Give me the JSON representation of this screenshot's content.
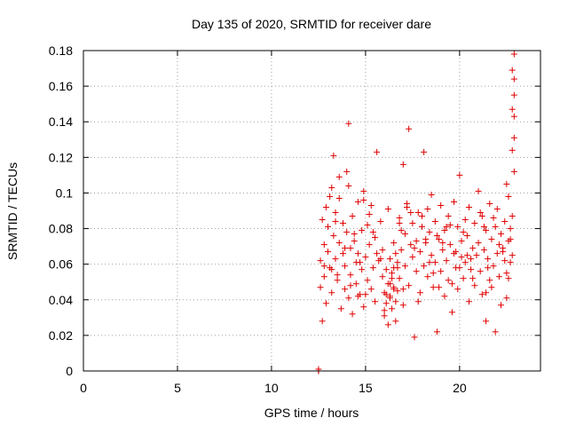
{
  "chart_data": {
    "type": "scatter",
    "title": "Day 135 of 2020, SRMTID for receiver dare",
    "xlabel": "GPS time / hours",
    "ylabel": "SRMTID / TECUs",
    "xlim": [
      0,
      24.3
    ],
    "ylim": [
      0,
      0.18
    ],
    "xticks": [
      0,
      5,
      10,
      15,
      20
    ],
    "yticks": [
      0,
      0.02,
      0.04,
      0.06,
      0.08,
      0.1,
      0.12,
      0.14,
      0.16,
      0.18
    ],
    "xtick_labels": [
      "0",
      "5",
      "10",
      "15",
      "20"
    ],
    "ytick_labels": [
      "0",
      "0.02",
      "0.04",
      "0.06",
      "0.08",
      "0.1",
      "0.12",
      "0.14",
      "0.16",
      "0.18"
    ],
    "grid": true,
    "marker": "+",
    "colors": {
      "points": "#e00000",
      "grid": "#a0a0a0",
      "frame": "#000000"
    },
    "series": [
      {
        "name": "SRMTID",
        "x": [
          12.5,
          12.5,
          12.5,
          12.6,
          12.6,
          12.7,
          12.7,
          12.8,
          12.8,
          12.9,
          12.9,
          13.0,
          13.0,
          13.1,
          13.2,
          13.2,
          13.3,
          13.3,
          13.4,
          13.4,
          13.5,
          13.6,
          13.6,
          13.7,
          13.8,
          13.8,
          13.9,
          13.9,
          14.0,
          14.0,
          14.1,
          14.1,
          14.2,
          14.2,
          14.3,
          14.3,
          14.4,
          14.5,
          14.5,
          14.6,
          14.6,
          14.7,
          14.8,
          14.8,
          14.9,
          14.9,
          15.0,
          15.1,
          15.1,
          15.2,
          15.3,
          15.3,
          15.4,
          15.5,
          15.5,
          15.6,
          15.7,
          15.8,
          15.9,
          15.9,
          16.0,
          16.0,
          16.1,
          16.1,
          16.2,
          16.2,
          16.3,
          16.3,
          16.4,
          16.4,
          16.5,
          16.5,
          16.6,
          16.6,
          16.7,
          16.7,
          16.8,
          16.8,
          16.9,
          17.0,
          17.0,
          17.1,
          17.1,
          17.2,
          17.3,
          17.3,
          17.4,
          17.5,
          17.5,
          17.6,
          17.7,
          17.7,
          17.8,
          17.9,
          17.9,
          18.0,
          18.1,
          18.1,
          18.2,
          18.3,
          18.3,
          18.4,
          18.5,
          18.5,
          18.6,
          18.7,
          18.7,
          18.8,
          18.9,
          19.0,
          19.0,
          19.1,
          19.2,
          19.2,
          19.3,
          19.4,
          19.4,
          19.5,
          19.6,
          19.7,
          19.7,
          19.8,
          19.9,
          19.9,
          20.0,
          20.1,
          20.1,
          20.2,
          20.3,
          20.3,
          20.4,
          20.5,
          20.5,
          20.6,
          20.7,
          20.8,
          20.8,
          20.9,
          21.0,
          21.0,
          21.1,
          21.2,
          21.2,
          21.3,
          21.4,
          21.4,
          21.5,
          21.6,
          21.6,
          21.7,
          21.8,
          21.8,
          21.9,
          22.0,
          22.0,
          22.1,
          22.2,
          22.2,
          22.3,
          22.4,
          22.4,
          22.5,
          22.5,
          22.6,
          22.6,
          22.7,
          22.7,
          22.8,
          22.8,
          22.8,
          22.9,
          22.9,
          22.9,
          22.9,
          22.9,
          22.9,
          22.8,
          22.8,
          22.7,
          22.6,
          13.1,
          13.4,
          13.9,
          14.1,
          14.4,
          14.7,
          15.2,
          15.6,
          16.2,
          16.5,
          16.9,
          17.2,
          17.6,
          18.0,
          18.4,
          18.8,
          19.1,
          19.5,
          19.8,
          20.2,
          20.6,
          21.1,
          21.5,
          21.9,
          22.3,
          13.6,
          14.9,
          15.4,
          16.8,
          17.4,
          18.2,
          19.3,
          20.4,
          21.3,
          22.1,
          13.2,
          14.2,
          15.0,
          16.0,
          17.0,
          18.6,
          19.6,
          20.7,
          21.7,
          12.8,
          13.5,
          14.6,
          15.8,
          16.3,
          17.8,
          18.9,
          20.0,
          21.4,
          22.5,
          16.6,
          16.4,
          16.7,
          16.1,
          16.3,
          16.5
        ],
        "y": [
          0.0,
          0.001,
          0.0,
          0.062,
          0.047,
          0.085,
          0.028,
          0.071,
          0.053,
          0.092,
          0.038,
          0.067,
          0.081,
          0.058,
          0.103,
          0.044,
          0.076,
          0.121,
          0.063,
          0.089,
          0.051,
          0.072,
          0.097,
          0.035,
          0.066,
          0.083,
          0.046,
          0.059,
          0.078,
          0.112,
          0.041,
          0.139,
          0.069,
          0.054,
          0.087,
          0.032,
          0.073,
          0.061,
          0.049,
          0.095,
          0.066,
          0.043,
          0.079,
          0.057,
          0.101,
          0.036,
          0.064,
          0.082,
          0.051,
          0.071,
          0.046,
          0.093,
          0.058,
          0.075,
          0.039,
          0.123,
          0.062,
          0.084,
          0.053,
          0.068,
          0.044,
          0.031,
          0.057,
          0.038,
          0.049,
          0.026,
          0.063,
          0.042,
          0.035,
          0.055,
          0.047,
          0.072,
          0.039,
          0.028,
          0.061,
          0.045,
          0.086,
          0.052,
          0.068,
          0.037,
          0.116,
          0.077,
          0.059,
          0.092,
          0.048,
          0.136,
          0.071,
          0.064,
          0.083,
          0.019,
          0.073,
          0.056,
          0.089,
          0.067,
          0.044,
          0.081,
          0.059,
          0.123,
          0.072,
          0.091,
          0.053,
          0.078,
          0.065,
          0.099,
          0.047,
          0.084,
          0.061,
          0.022,
          0.074,
          0.056,
          0.093,
          0.068,
          0.042,
          0.079,
          0.062,
          0.087,
          0.051,
          0.071,
          0.033,
          0.066,
          0.095,
          0.058,
          0.081,
          0.046,
          0.11,
          0.073,
          0.064,
          0.052,
          0.085,
          0.061,
          0.076,
          0.039,
          0.092,
          0.057,
          0.069,
          0.083,
          0.048,
          0.065,
          0.101,
          0.072,
          0.056,
          0.087,
          0.043,
          0.068,
          0.079,
          0.028,
          0.063,
          0.094,
          0.051,
          0.074,
          0.059,
          0.086,
          0.022,
          0.066,
          0.091,
          0.053,
          0.077,
          0.037,
          0.069,
          0.084,
          0.062,
          0.105,
          0.055,
          0.073,
          0.098,
          0.061,
          0.08,
          0.169,
          0.147,
          0.124,
          0.178,
          0.164,
          0.155,
          0.143,
          0.131,
          0.112,
          0.087,
          0.065,
          0.074,
          0.052,
          0.098,
          0.084,
          0.069,
          0.104,
          0.077,
          0.061,
          0.088,
          0.066,
          0.091,
          0.058,
          0.079,
          0.094,
          0.069,
          0.087,
          0.061,
          0.076,
          0.072,
          0.082,
          0.067,
          0.078,
          0.063,
          0.089,
          0.058,
          0.081,
          0.067,
          0.109,
          0.096,
          0.078,
          0.083,
          0.089,
          0.074,
          0.081,
          0.065,
          0.081,
          0.071,
          0.057,
          0.048,
          0.043,
          0.034,
          0.046,
          0.055,
          0.049,
          0.052,
          0.047,
          0.059,
          0.054,
          0.042,
          0.063,
          0.041,
          0.039,
          0.047,
          0.058,
          0.044,
          0.041,
          0.066,
          0.052,
          0.058,
          0.043,
          0.049,
          0.046
        ]
      }
    ]
  }
}
